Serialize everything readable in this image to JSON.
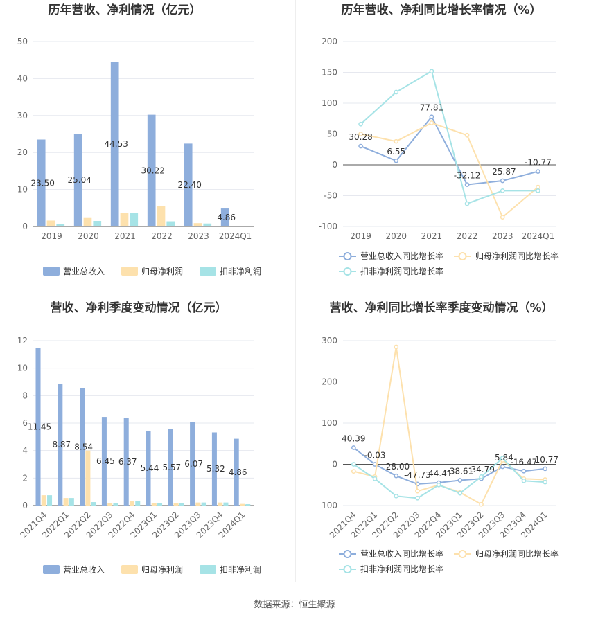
{
  "source": "数据来源：恒生聚源",
  "colors": {
    "revenue": "#8eaedc",
    "net_profit": "#fde1ad",
    "deducted_profit": "#a6e3e6",
    "grid": "#e6e8ef",
    "axis": "#999999",
    "title": "#333333"
  },
  "chart_data": [
    {
      "id": "annual-amount",
      "type": "bar",
      "title": "历年营收、净利情况（亿元）",
      "categories": [
        "2019",
        "2020",
        "2021",
        "2022",
        "2023",
        "2024Q1"
      ],
      "ylim": [
        0,
        50
      ],
      "yticks": [
        0,
        10,
        20,
        30,
        40,
        50
      ],
      "series": [
        {
          "name": "营业总收入",
          "values": [
            23.5,
            25.04,
            44.53,
            30.22,
            22.4,
            4.86
          ],
          "labels": [
            "23.50",
            "25.04",
            "44.53",
            "30.22",
            "22.40",
            "4.86"
          ]
        },
        {
          "name": "归母净利润",
          "values": [
            1.6,
            2.3,
            3.7,
            5.6,
            0.9,
            0.15
          ]
        },
        {
          "name": "扣非净利润",
          "values": [
            0.7,
            1.5,
            3.7,
            1.4,
            0.8,
            0.13
          ]
        }
      ]
    },
    {
      "id": "annual-growth",
      "type": "line",
      "title": "历年营收、净利同比增长率情况（%）",
      "categories": [
        "2019",
        "2020",
        "2021",
        "2022",
        "2023",
        "2024Q1"
      ],
      "ylim": [
        -100,
        200
      ],
      "yticks": [
        -100,
        -50,
        0,
        50,
        100,
        150,
        200
      ],
      "series": [
        {
          "name": "营业总收入同比增长率",
          "values": [
            30.28,
            6.55,
            77.81,
            -32.12,
            -25.87,
            -10.77
          ],
          "labels": [
            "30.28",
            "6.55",
            "77.81",
            "-32.12",
            "-25.87",
            "-10.77"
          ]
        },
        {
          "name": "归母净利润同比增长率",
          "values": [
            50,
            38,
            68,
            48,
            -85,
            -36
          ]
        },
        {
          "name": "扣非净利润同比增长率",
          "values": [
            66,
            118,
            152,
            -63,
            -42,
            -42
          ]
        }
      ]
    },
    {
      "id": "quarterly-amount",
      "type": "bar",
      "title": "营收、净利季度变动情况（亿元）",
      "categories": [
        "2021Q4",
        "2022Q1",
        "2022Q2",
        "2022Q3",
        "2022Q4",
        "2023Q1",
        "2023Q2",
        "2023Q3",
        "2023Q4",
        "2024Q1"
      ],
      "ylim": [
        0,
        12
      ],
      "yticks": [
        0,
        2,
        4,
        6,
        8,
        10,
        12
      ],
      "series": [
        {
          "name": "营业总收入",
          "values": [
            11.45,
            8.87,
            8.54,
            6.45,
            6.37,
            5.44,
            5.57,
            6.07,
            5.32,
            4.86
          ],
          "labels": [
            "11.45",
            "8.87",
            "8.54",
            "6.45",
            "6.37",
            "5.44",
            "5.57",
            "6.07",
            "5.32",
            "4.86"
          ]
        },
        {
          "name": "归母净利润",
          "values": [
            0.75,
            0.55,
            4.0,
            0.2,
            0.35,
            0.18,
            0.2,
            0.22,
            0.22,
            0.12
          ]
        },
        {
          "name": "扣非净利润",
          "values": [
            0.75,
            0.55,
            0.25,
            0.2,
            0.35,
            0.18,
            0.2,
            0.22,
            0.22,
            0.1
          ]
        }
      ]
    },
    {
      "id": "quarterly-growth",
      "type": "line",
      "title": "营收、净利同比增长率季度变动情况（%）",
      "categories": [
        "2021Q4",
        "2022Q1",
        "2022Q2",
        "2022Q3",
        "2022Q4",
        "2023Q1",
        "2023Q2",
        "2023Q3",
        "2023Q4",
        "2024Q1"
      ],
      "ylim": [
        -100,
        300
      ],
      "yticks": [
        -100,
        0,
        100,
        200,
        300
      ],
      "series": [
        {
          "name": "营业总收入同比增长率",
          "values": [
            40.39,
            -0.03,
            -28.0,
            -47.73,
            -44.41,
            -38.61,
            -34.79,
            -5.84,
            -16.47,
            -10.77
          ],
          "labels": [
            "40.39",
            "-0.03",
            "-28.00",
            "-47.73",
            "-44.41",
            "-38.61",
            "-34.79",
            "-5.84",
            "-16.47",
            "-10.77"
          ]
        },
        {
          "name": "归母净利润同比增长率",
          "values": [
            -17,
            -30,
            285,
            -65,
            -50,
            -68,
            -97,
            10,
            -35,
            -37
          ]
        },
        {
          "name": "扣非净利润同比增长率",
          "values": [
            0,
            -35,
            -77,
            -82,
            -50,
            -70,
            -30,
            15,
            -40,
            -43
          ]
        }
      ]
    }
  ]
}
